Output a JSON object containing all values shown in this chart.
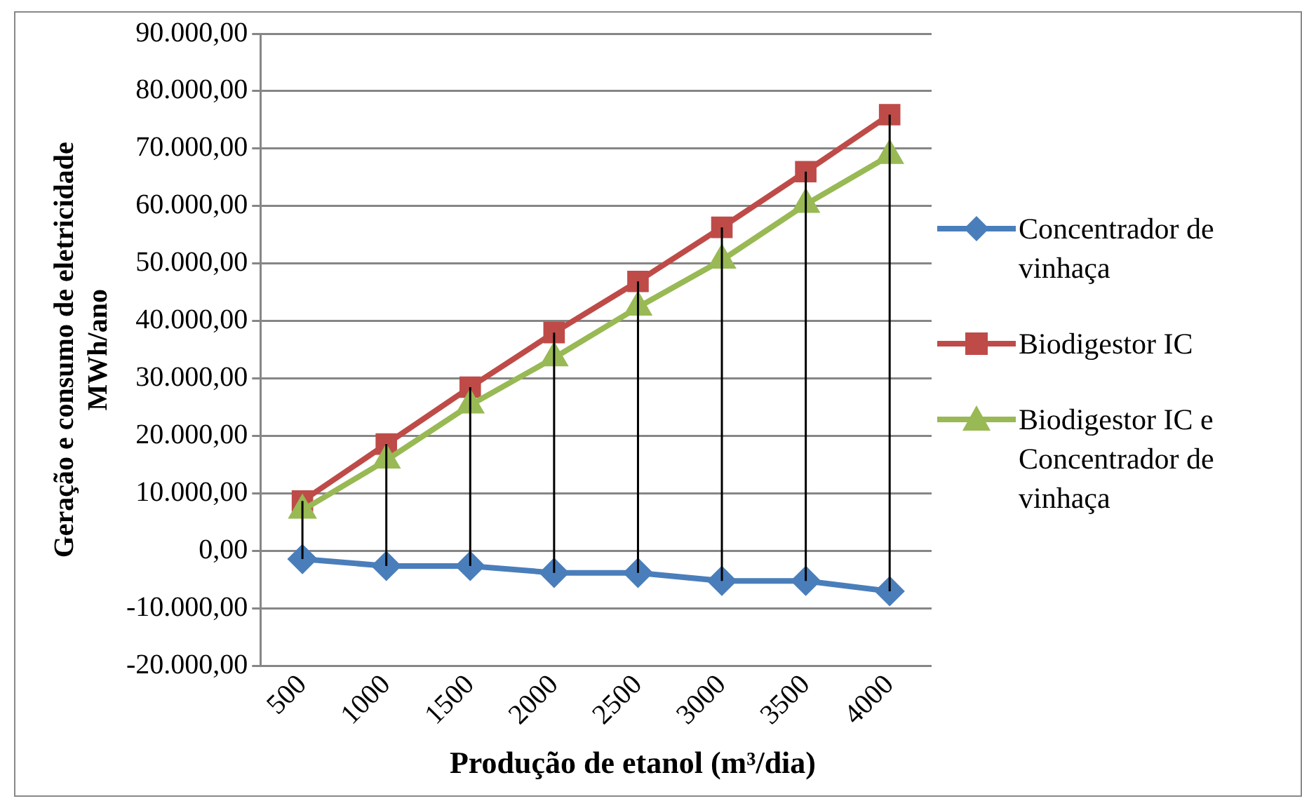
{
  "chart_data": {
    "type": "line",
    "xlabel": "Produção de etanol (m³/dia)",
    "ylabel": "Geração e consumo de eletricidade\nMWh/ano",
    "categories": [
      "500",
      "1000",
      "1500",
      "2000",
      "2500",
      "3000",
      "3500",
      "4000"
    ],
    "series": [
      {
        "name": "Concentrador de vinhaça",
        "color": "#4a7ebb",
        "marker": "diamond",
        "values": [
          -1400,
          -2600,
          -2600,
          -3800,
          -3800,
          -5200,
          -5200,
          -7000
        ]
      },
      {
        "name": "Biodigestor IC",
        "color": "#be4b48",
        "marker": "square",
        "values": [
          8700,
          18600,
          28500,
          38000,
          46900,
          56300,
          66000,
          75900
        ],
        "errors": [
          [
            -1400,
            8700
          ],
          [
            -2600,
            18600
          ],
          [
            -2600,
            28500
          ],
          [
            -3800,
            38000
          ],
          [
            -3800,
            46900
          ],
          [
            -5200,
            56300
          ],
          [
            -5200,
            66000
          ],
          [
            -7000,
            75900
          ]
        ]
      },
      {
        "name": "Biodigestor IC e Concentrador de vinhaça",
        "color": "#98b954",
        "marker": "triangle",
        "values": [
          7100,
          15800,
          25400,
          33600,
          42400,
          50600,
          60300,
          68800
        ]
      }
    ],
    "ylim": [
      -20000,
      90000
    ],
    "yticks": [
      {
        "value": -20000,
        "label": "-20.000,00"
      },
      {
        "value": -10000,
        "label": "-10.000,00"
      },
      {
        "value": 0,
        "label": "0,00"
      },
      {
        "value": 10000,
        "label": "10.000,00"
      },
      {
        "value": 20000,
        "label": "20.000,00"
      },
      {
        "value": 30000,
        "label": "30.000,00"
      },
      {
        "value": 40000,
        "label": "40.000,00"
      },
      {
        "value": 50000,
        "label": "50.000,00"
      },
      {
        "value": 60000,
        "label": "60.000,00"
      },
      {
        "value": 70000,
        "label": "70.000,00"
      },
      {
        "value": 80000,
        "label": "80.000,00"
      },
      {
        "value": 90000,
        "label": "90.000,00"
      }
    ],
    "grid": "y",
    "legend": "right",
    "line_style": "solid"
  }
}
